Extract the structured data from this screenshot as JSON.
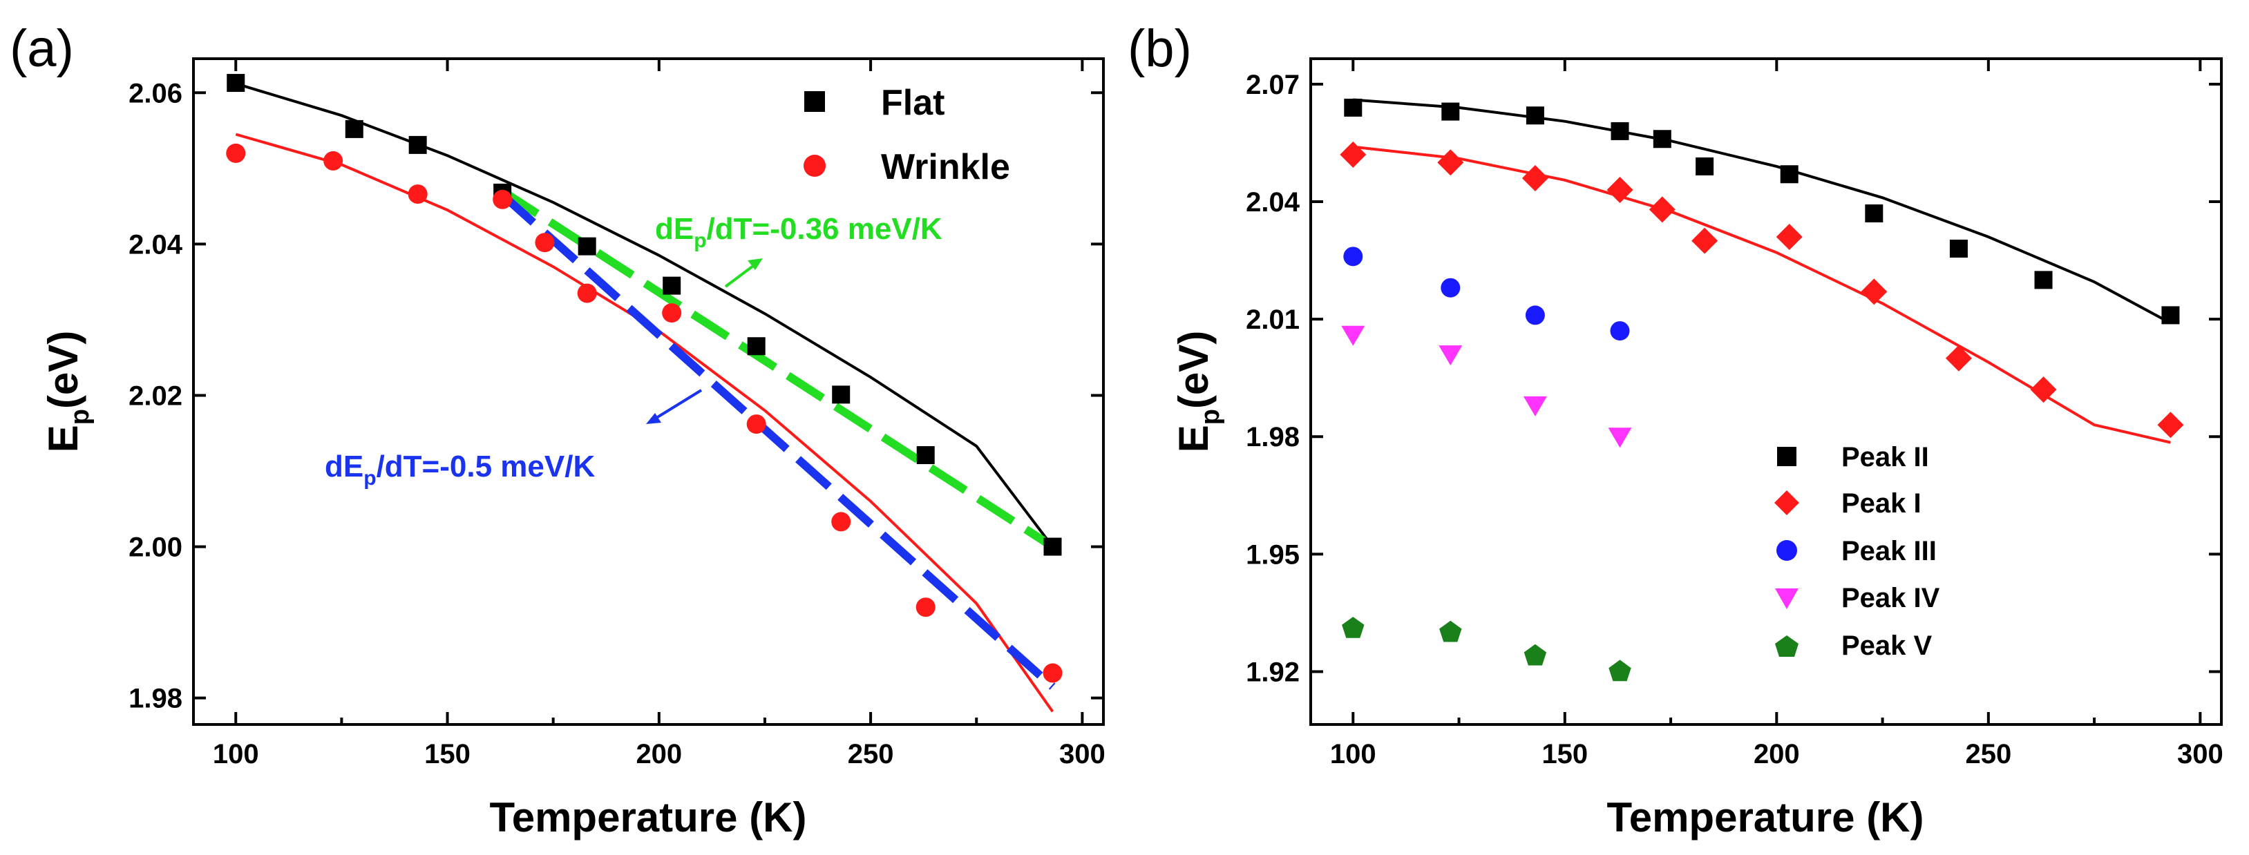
{
  "chart_data": [
    {
      "type": "scatter",
      "panel_label": "(a)",
      "xlabel": "Temperature (K)",
      "ylabel": {
        "main": "E",
        "sub": "p",
        "rest": "(eV)"
      },
      "xlim": [
        90,
        305
      ],
      "ylim": [
        1.9765,
        2.0645
      ],
      "xticks": [
        100,
        150,
        200,
        250,
        300
      ],
      "yticks": [
        1.98,
        2.0,
        2.02,
        2.04,
        2.06
      ],
      "ytick_labels": [
        "1.98",
        "2.00",
        "2.02",
        "2.04",
        "2.06"
      ],
      "legend_position": "top-right",
      "series": [
        {
          "name": "Flat",
          "marker": "square",
          "color": "#000000",
          "x": [
            100,
            128,
            143,
            163,
            183,
            203,
            223,
            243,
            263,
            293
          ],
          "y": [
            2.0613,
            2.0552,
            2.0531,
            2.0468,
            2.0397,
            2.0345,
            2.0265,
            2.0201,
            2.0121,
            2.0
          ]
        },
        {
          "name": "Wrinkle",
          "marker": "circle",
          "color": "#ff1a1a",
          "x": [
            100,
            123,
            143,
            163,
            173,
            183,
            203,
            223,
            243,
            263,
            293
          ],
          "y": [
            2.052,
            2.051,
            2.0466,
            2.0459,
            2.0402,
            2.0335,
            2.0309,
            2.0162,
            2.0033,
            1.992,
            1.9833
          ]
        }
      ],
      "fits": [
        {
          "series": "Flat",
          "color": "#000000",
          "x": [
            100,
            125,
            150,
            175,
            200,
            225,
            250,
            275,
            293
          ],
          "y": [
            2.0612,
            2.057,
            2.0517,
            2.0455,
            2.0385,
            2.0308,
            2.0224,
            2.0133,
            2.0
          ]
        },
        {
          "series": "Wrinkle",
          "color": "#ff1a1a",
          "x": [
            100,
            125,
            150,
            175,
            200,
            225,
            250,
            275,
            293
          ],
          "y": [
            2.0545,
            2.0505,
            2.0445,
            2.037,
            2.0285,
            2.018,
            2.006,
            1.9925,
            1.9782
          ]
        }
      ],
      "linear_fits": [
        {
          "color": "#22dd22",
          "dash": "long",
          "x": [
            163,
            293
          ],
          "y": [
            2.047,
            2.0
          ]
        },
        {
          "color": "#1a33ee",
          "dash": "long",
          "x": [
            163,
            293
          ],
          "y": [
            2.0465,
            1.9815
          ]
        }
      ],
      "annotations": [
        {
          "main": "dE",
          "sub": "p",
          "rest": "/dT=-0.36 meV/K",
          "color": "#22dd22"
        },
        {
          "main": "dE",
          "sub": "p",
          "rest": "/dT=-0.5 meV/K",
          "color": "#1a33ee"
        }
      ]
    },
    {
      "type": "scatter",
      "panel_label": "(b)",
      "xlabel": "Temperature (K)",
      "ylabel": {
        "main": "E",
        "sub": "p",
        "rest": "(eV)"
      },
      "xlim": [
        90,
        305
      ],
      "ylim": [
        1.9065,
        2.0765
      ],
      "xticks": [
        100,
        150,
        200,
        250,
        300
      ],
      "yticks": [
        1.92,
        1.95,
        1.98,
        2.01,
        2.04,
        2.07
      ],
      "ytick_labels": [
        "1.92",
        "1.95",
        "1.98",
        "2.01",
        "2.04",
        "2.07"
      ],
      "legend_position": "bottom-right",
      "series": [
        {
          "name": "Peak II",
          "marker": "square",
          "color": "#000000",
          "x": [
            100,
            123,
            143,
            163,
            173,
            183,
            203,
            223,
            243,
            263,
            293
          ],
          "y": [
            2.064,
            2.063,
            2.062,
            2.058,
            2.056,
            2.049,
            2.047,
            2.037,
            2.028,
            2.02,
            2.011
          ]
        },
        {
          "name": "Peak I",
          "marker": "diamond",
          "color": "#ff1a1a",
          "x": [
            100,
            123,
            143,
            163,
            173,
            183,
            203,
            223,
            243,
            263,
            293
          ],
          "y": [
            2.052,
            2.05,
            2.046,
            2.043,
            2.038,
            2.03,
            2.031,
            2.017,
            2.0,
            1.992,
            1.983
          ]
        },
        {
          "name": "Peak III",
          "marker": "circle",
          "color": "#1a1aff",
          "x": [
            100,
            123,
            143,
            163
          ],
          "y": [
            2.026,
            2.018,
            2.011,
            2.007
          ]
        },
        {
          "name": "Peak IV",
          "marker": "triangle-down",
          "color": "#ff33ff",
          "x": [
            100,
            123,
            143,
            163
          ],
          "y": [
            2.006,
            2.001,
            1.988,
            1.98
          ]
        },
        {
          "name": "Peak V",
          "marker": "pentagon",
          "color": "#1a801a",
          "x": [
            100,
            123,
            143,
            163
          ],
          "y": [
            1.931,
            1.93,
            1.924,
            1.92
          ]
        }
      ],
      "fits": [
        {
          "series": "Peak II",
          "color": "#000000",
          "x": [
            100,
            125,
            150,
            175,
            200,
            225,
            250,
            275,
            293
          ],
          "y": [
            2.066,
            2.064,
            2.0605,
            2.0555,
            2.049,
            2.041,
            2.031,
            2.0195,
            2.009
          ]
        },
        {
          "series": "Peak I",
          "color": "#ff1a1a",
          "x": [
            100,
            125,
            150,
            175,
            200,
            225,
            250,
            275,
            293
          ],
          "y": [
            2.054,
            2.051,
            2.0455,
            2.0375,
            2.027,
            2.014,
            1.999,
            1.983,
            1.9785
          ]
        }
      ]
    }
  ]
}
